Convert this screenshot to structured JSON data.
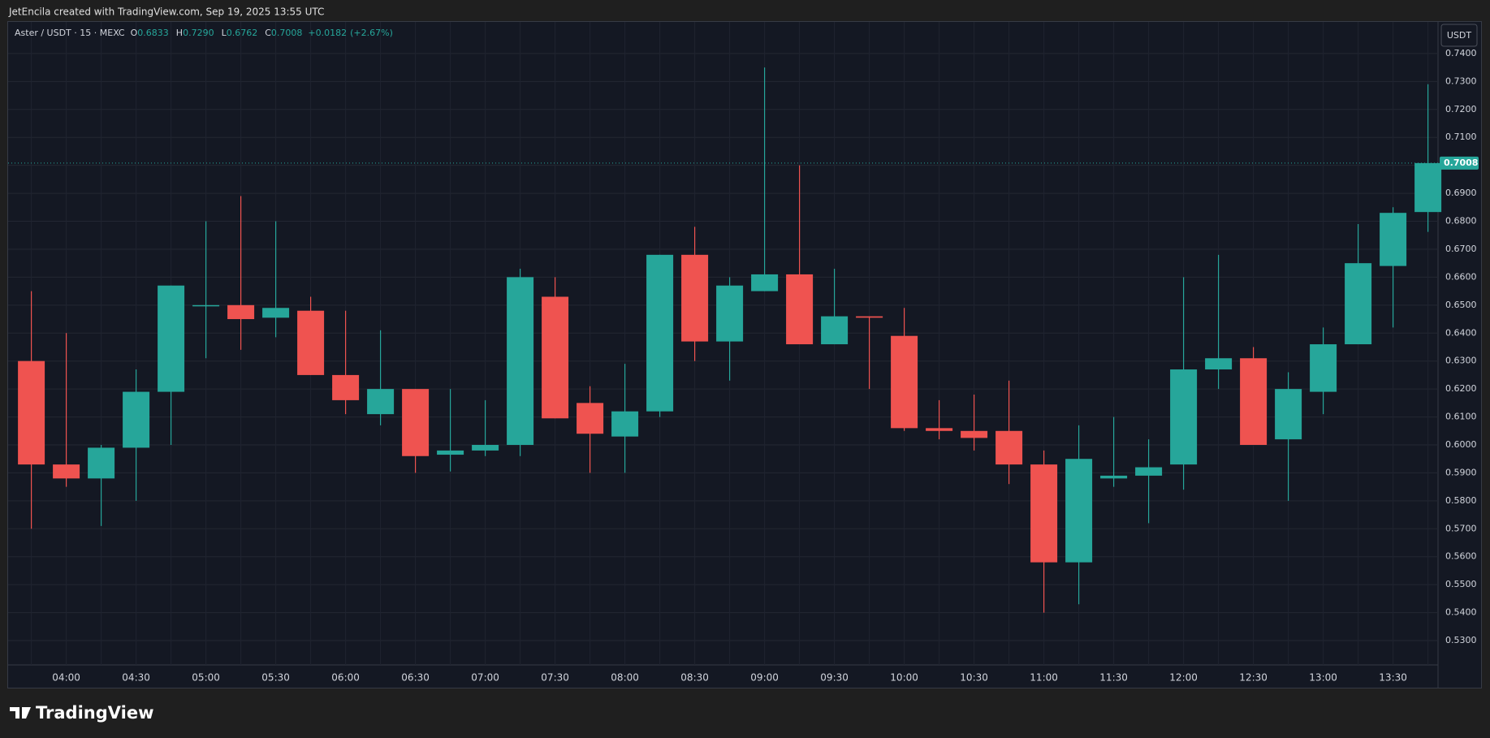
{
  "header": "JetEncila created with TradingView.com, Sep 19, 2025 13:55 UTC",
  "legend": {
    "symbol": "Aster / USDT · 15 · MEXC",
    "items": [
      {
        "key": "O",
        "value": 0.6833
      },
      {
        "key": "H",
        "value": {
          "value": 0.729,
          "label": "0.7290"
        }
      },
      {
        "key": "L",
        "value": 0.6762
      },
      {
        "key": "C",
        "value": 0.7008
      }
    ],
    "change": {
      "value": 0.0182,
      "label": "+0.0182"
    },
    "change_pct": {
      "value": 2.67,
      "label": "(+2.67%)"
    }
  },
  "currency_button": "USDT",
  "footer": "TradingView",
  "chart_data": {
    "type": "candlestick",
    "x": [
      null,
      "04:00",
      null,
      "04:30",
      null,
      "05:00",
      null,
      "05:30",
      null,
      "06:00",
      null,
      "06:30",
      null,
      "07:00",
      null,
      "07:30",
      null,
      "08:00",
      null,
      "08:30",
      null,
      "09:00",
      null,
      "09:30",
      null,
      "10:00",
      null,
      "10:30",
      null,
      "11:00",
      null,
      "11:30",
      null,
      "12:00",
      null,
      "12:30",
      null,
      "13:00",
      null,
      "13:30",
      null
    ],
    "open": [
      0.63,
      0.593,
      0.588,
      0.599,
      0.619,
      0.65,
      0.65,
      0.6455,
      0.648,
      0.625,
      0.611,
      0.62,
      0.5965,
      0.598,
      0.6,
      0.653,
      0.615,
      0.603,
      0.612,
      0.668,
      0.637,
      0.655,
      0.661,
      0.636,
      0.646,
      0.639,
      0.606,
      0.605,
      0.605,
      0.593,
      0.558,
      0.588,
      0.589,
      0.593,
      0.627,
      0.631,
      0.602,
      0.619,
      0.636,
      0.664,
      0.6833
    ],
    "high": [
      0.655,
      0.64,
      0.6,
      0.627,
      0.657,
      0.68,
      0.689,
      0.68,
      0.653,
      0.648,
      0.641,
      0.62,
      0.62,
      0.616,
      0.663,
      0.66,
      0.621,
      0.629,
      0.668,
      0.678,
      0.66,
      0.735,
      0.7,
      0.663,
      0.646,
      0.649,
      0.616,
      0.618,
      0.623,
      0.598,
      0.607,
      0.61,
      0.602,
      0.66,
      0.668,
      0.635,
      0.626,
      0.642,
      0.679,
      0.685,
      0.729
    ],
    "low": [
      0.57,
      0.585,
      0.571,
      0.58,
      0.6,
      0.631,
      0.634,
      0.6385,
      0.625,
      0.611,
      0.607,
      0.59,
      0.5905,
      0.596,
      0.596,
      0.6095,
      0.59,
      0.59,
      0.61,
      0.63,
      0.623,
      0.655,
      0.636,
      0.636,
      0.62,
      0.605,
      0.602,
      0.598,
      0.586,
      0.54,
      0.543,
      0.585,
      0.572,
      0.584,
      0.62,
      0.6,
      0.58,
      0.611,
      0.636,
      0.642,
      0.6762
    ],
    "close": [
      0.593,
      0.588,
      0.599,
      0.619,
      0.657,
      0.65,
      0.645,
      0.649,
      0.625,
      0.616,
      0.62,
      0.596,
      0.598,
      0.6,
      0.66,
      0.6095,
      0.604,
      0.612,
      0.668,
      0.637,
      0.657,
      0.661,
      0.636,
      0.646,
      0.6455,
      0.606,
      0.605,
      0.6025,
      0.593,
      0.558,
      0.595,
      0.589,
      0.592,
      0.627,
      0.631,
      0.6,
      0.62,
      0.636,
      0.665,
      0.683,
      0.7008
    ],
    "up_color": "#26a69a",
    "down_color": "#ef5350",
    "ylim": [
      0.5213,
      0.7513
    ],
    "yticks": [
      {
        "value": 0.53,
        "label": "0.5300"
      },
      {
        "value": 0.54,
        "label": "0.5400"
      },
      {
        "value": 0.55,
        "label": "0.5500"
      },
      {
        "value": 0.56,
        "label": "0.5600"
      },
      {
        "value": 0.57,
        "label": "0.5700"
      },
      {
        "value": 0.58,
        "label": "0.5800"
      },
      {
        "value": 0.59,
        "label": "0.5900"
      },
      {
        "value": 0.6,
        "label": "0.6000"
      },
      {
        "value": 0.61,
        "label": "0.6100"
      },
      {
        "value": 0.62,
        "label": "0.6200"
      },
      {
        "value": 0.63,
        "label": "0.6300"
      },
      {
        "value": 0.64,
        "label": "0.6400"
      },
      {
        "value": 0.65,
        "label": "0.6500"
      },
      {
        "value": 0.66,
        "label": "0.6600"
      },
      {
        "value": 0.67,
        "label": "0.6700"
      },
      {
        "value": 0.68,
        "label": "0.6800"
      },
      {
        "value": 0.69,
        "label": "0.6900"
      },
      {
        "value": 0.7,
        "label": "0.7000"
      },
      {
        "value": 0.71,
        "label": "0.7100"
      },
      {
        "value": 0.72,
        "label": "0.7200"
      },
      {
        "value": 0.73,
        "label": "0.7300"
      },
      {
        "value": 0.74,
        "label": "0.7400"
      }
    ],
    "last_price": 0.7008,
    "grid": true
  }
}
